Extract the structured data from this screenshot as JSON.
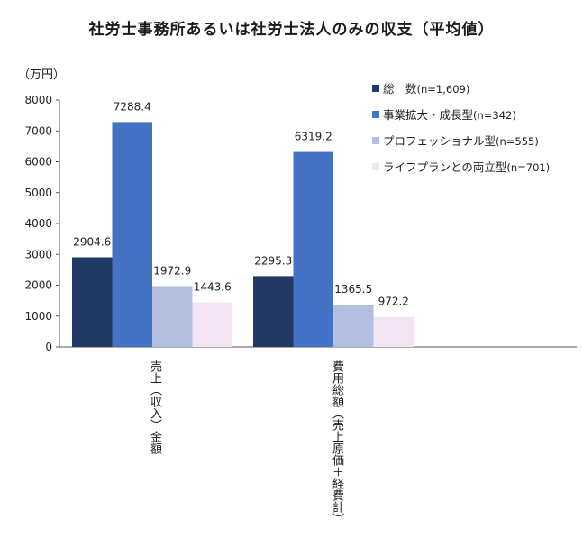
{
  "chart_data": {
    "type": "bar",
    "title": "社労士事務所あるいは社労士法人のみの収支（平均値）",
    "ylabel": "（万円）",
    "ylim": [
      0,
      8000
    ],
    "yticks": [
      "0",
      "1000",
      "2000",
      "3000",
      "4000",
      "5000",
      "6000",
      "7000",
      "8000"
    ],
    "categories": [
      "売上（収入）金額",
      "費用総額（売上原価＋経費計）"
    ],
    "grid": false,
    "legend_position": "top-right",
    "series": [
      {
        "name": "総　数",
        "note": "(n=1,609)",
        "color": "#1f3864",
        "values": [
          2904.6,
          2295.3
        ],
        "labels": [
          "2904.6",
          "2295.3"
        ]
      },
      {
        "name": "事業拡大・成長型",
        "note": "(n=342)",
        "color": "#4472c4",
        "values": [
          7288.4,
          6319.2
        ],
        "labels": [
          "7288.4",
          "6319.2"
        ]
      },
      {
        "name": "プロフェッショナル型",
        "note": "(n=555)",
        "color": "#b4bfe0",
        "values": [
          1972.9,
          1365.5
        ],
        "labels": [
          "1972.9",
          "1365.5"
        ]
      },
      {
        "name": "ライフプランとの両立型",
        "note": "(n=701)",
        "color": "#f3e4f4",
        "values": [
          1443.6,
          972.2
        ],
        "labels": [
          "1443.6",
          "972.2"
        ]
      }
    ]
  }
}
